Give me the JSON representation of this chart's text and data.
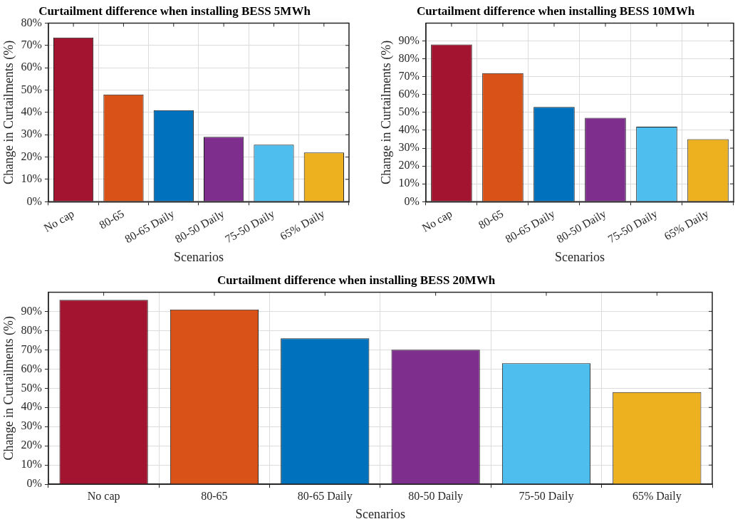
{
  "chart_data": [
    {
      "type": "bar",
      "title": "Curtailment difference when installing BESS 5MWh",
      "xlabel": "Scenarios",
      "ylabel": "Change in Curtailments (%)",
      "categories": [
        "No cap",
        "80-65",
        "80-65 Daily",
        "80-50 Daily",
        "75-50 Daily",
        "65% Daily"
      ],
      "values": [
        73.5,
        48,
        41,
        29,
        25.5,
        22
      ],
      "colors": [
        "#a2142f",
        "#d95319",
        "#0072bd",
        "#7e2f8e",
        "#4dbeee",
        "#edb120"
      ],
      "ylim": [
        0,
        80
      ],
      "yticks": [
        {
          "value": 0,
          "label": "0%"
        },
        {
          "value": 10,
          "label": "10%"
        },
        {
          "value": 20,
          "label": "20%"
        },
        {
          "value": 30,
          "label": "30%"
        },
        {
          "value": 40,
          "label": "40%"
        },
        {
          "value": 50,
          "label": "50%"
        },
        {
          "value": 60,
          "label": "60%"
        },
        {
          "value": 70,
          "label": "70%"
        },
        {
          "value": 80,
          "label": "80%"
        }
      ],
      "grid": true
    },
    {
      "type": "bar",
      "title": "Curtailment difference when installing BESS 10MWh",
      "xlabel": "Scenarios",
      "ylabel": "Change in Curtailments (%)",
      "categories": [
        "No cap",
        "80-65",
        "80-65 Daily",
        "80-50 Daily",
        "75-50 Daily",
        "65% Daily"
      ],
      "values": [
        88,
        72,
        53,
        47,
        42,
        35
      ],
      "colors": [
        "#a2142f",
        "#d95319",
        "#0072bd",
        "#7e2f8e",
        "#4dbeee",
        "#edb120"
      ],
      "ylim": [
        0,
        100
      ],
      "yticks": [
        {
          "value": 0,
          "label": "0%"
        },
        {
          "value": 10,
          "label": "10%"
        },
        {
          "value": 20,
          "label": "20%"
        },
        {
          "value": 30,
          "label": "30%"
        },
        {
          "value": 40,
          "label": "40%"
        },
        {
          "value": 50,
          "label": "50%"
        },
        {
          "value": 60,
          "label": "60%"
        },
        {
          "value": 70,
          "label": "70%"
        },
        {
          "value": 80,
          "label": "80%"
        },
        {
          "value": 90,
          "label": "90%"
        }
      ],
      "grid": true
    },
    {
      "type": "bar",
      "title": "Curtailment difference when installing BESS 20MWh",
      "xlabel": "Scenarios",
      "ylabel": "Change in Curtailments (%)",
      "categories": [
        "No cap",
        "80-65",
        "80-65 Daily",
        "80-50 Daily",
        "75-50 Daily",
        "65% Daily"
      ],
      "values": [
        96,
        91,
        76,
        70,
        63,
        48
      ],
      "colors": [
        "#a2142f",
        "#d95319",
        "#0072bd",
        "#7e2f8e",
        "#4dbeee",
        "#edb120"
      ],
      "ylim": [
        0,
        100
      ],
      "yticks": [
        {
          "value": 0,
          "label": "0%"
        },
        {
          "value": 10,
          "label": "10%"
        },
        {
          "value": 20,
          "label": "20%"
        },
        {
          "value": 30,
          "label": "30%"
        },
        {
          "value": 40,
          "label": "40%"
        },
        {
          "value": 50,
          "label": "50%"
        },
        {
          "value": 60,
          "label": "60%"
        },
        {
          "value": 70,
          "label": "70%"
        },
        {
          "value": 80,
          "label": "80%"
        },
        {
          "value": 90,
          "label": "90%"
        }
      ],
      "grid": true
    }
  ]
}
